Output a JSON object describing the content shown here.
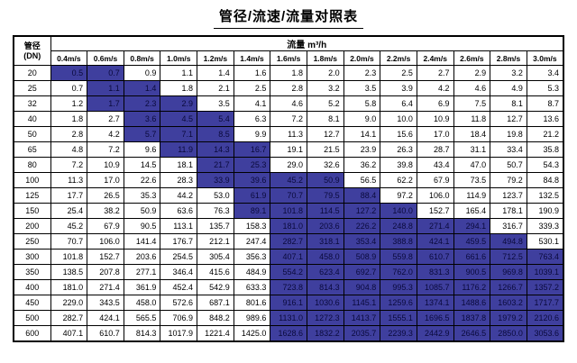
{
  "page": {
    "title": "管径/流速/流量对照表"
  },
  "colors": {
    "highlight_bg": "#3F3F9E",
    "highlight_text": "#0A0A3C",
    "border": "#000000",
    "text": "#000000",
    "background": "#FFFFFF"
  },
  "table": {
    "dn_header": "管径",
    "dn_header_sub": "(DN)",
    "flow_header": "流量 m³/h",
    "velocity_headers": [
      "0.4m/s",
      "0.6m/s",
      "0.8m/s",
      "1.0m/s",
      "1.2m/s",
      "1.4m/s",
      "1.6m/s",
      "1.8m/s",
      "2.0m/s",
      "2.2m/s",
      "2.4m/s",
      "2.6m/s",
      "2.8m/s",
      "3.0m/s"
    ],
    "rows": [
      {
        "dn": "20",
        "values": [
          "0.5",
          "0.7",
          "0.9",
          "1.1",
          "1.4",
          "1.6",
          "1.8",
          "2.0",
          "2.3",
          "2.5",
          "2.7",
          "2.9",
          "3.2",
          "3.4"
        ],
        "highlight": [
          0,
          1
        ]
      },
      {
        "dn": "25",
        "values": [
          "0.7",
          "1.1",
          "1.4",
          "1.8",
          "2.1",
          "2.5",
          "2.8",
          "3.2",
          "3.5",
          "3.9",
          "4.2",
          "4.6",
          "4.9",
          "5.3"
        ],
        "highlight": [
          1,
          2
        ]
      },
      {
        "dn": "32",
        "values": [
          "1.2",
          "1.7",
          "2.3",
          "2.9",
          "3.5",
          "4.1",
          "4.6",
          "5.2",
          "5.8",
          "6.4",
          "6.9",
          "7.5",
          "8.1",
          "8.7"
        ],
        "highlight": [
          1,
          3
        ]
      },
      {
        "dn": "40",
        "values": [
          "1.8",
          "2.7",
          "3.6",
          "4.5",
          "5.4",
          "6.3",
          "7.2",
          "8.1",
          "9.0",
          "10.0",
          "10.9",
          "11.8",
          "12.7",
          "13.6"
        ],
        "highlight": [
          2,
          4
        ]
      },
      {
        "dn": "50",
        "values": [
          "2.8",
          "4.2",
          "5.7",
          "7.1",
          "8.5",
          "9.9",
          "11.3",
          "12.7",
          "14.1",
          "15.6",
          "17.0",
          "18.4",
          "19.8",
          "21.2"
        ],
        "highlight": [
          2,
          4
        ]
      },
      {
        "dn": "65",
        "values": [
          "4.8",
          "7.2",
          "9.6",
          "11.9",
          "14.3",
          "16.7",
          "19.1",
          "21.5",
          "23.9",
          "26.3",
          "28.7",
          "31.1",
          "33.4",
          "35.8"
        ],
        "highlight": [
          3,
          5
        ]
      },
      {
        "dn": "80",
        "values": [
          "7.2",
          "10.9",
          "14.5",
          "18.1",
          "21.7",
          "25.3",
          "29.0",
          "32.6",
          "36.2",
          "39.8",
          "43.4",
          "47.0",
          "50.7",
          "54.3"
        ],
        "highlight": [
          4,
          5
        ]
      },
      {
        "dn": "100",
        "values": [
          "11.3",
          "17.0",
          "22.6",
          "28.3",
          "33.9",
          "39.6",
          "45.2",
          "50.9",
          "56.5",
          "62.2",
          "67.9",
          "73.5",
          "79.2",
          "84.8"
        ],
        "highlight": [
          4,
          7
        ]
      },
      {
        "dn": "125",
        "values": [
          "17.7",
          "26.5",
          "35.3",
          "44.2",
          "53.0",
          "61.9",
          "70.7",
          "79.5",
          "88.4",
          "97.2",
          "106.0",
          "114.9",
          "123.7",
          "132.5"
        ],
        "highlight": [
          5,
          8
        ]
      },
      {
        "dn": "150",
        "values": [
          "25.4",
          "38.2",
          "50.9",
          "63.6",
          "76.3",
          "89.1",
          "101.8",
          "114.5",
          "127.2",
          "140.0",
          "152.7",
          "165.4",
          "178.1",
          "190.9"
        ],
        "highlight": [
          5,
          9
        ]
      },
      {
        "dn": "200",
        "values": [
          "45.2",
          "67.9",
          "90.5",
          "113.1",
          "135.7",
          "158.3",
          "181.0",
          "203.6",
          "226.2",
          "248.8",
          "271.4",
          "294.1",
          "316.7",
          "339.3"
        ],
        "highlight": [
          6,
          11
        ]
      },
      {
        "dn": "250",
        "values": [
          "70.7",
          "106.0",
          "141.4",
          "176.7",
          "212.1",
          "247.4",
          "282.7",
          "318.1",
          "353.4",
          "388.8",
          "424.1",
          "459.5",
          "494.8",
          "530.1"
        ],
        "highlight": [
          6,
          12
        ]
      },
      {
        "dn": "300",
        "values": [
          "101.8",
          "152.7",
          "203.6",
          "254.5",
          "305.4",
          "356.3",
          "407.1",
          "458.0",
          "508.9",
          "559.8",
          "610.7",
          "661.6",
          "712.5",
          "763.4"
        ],
        "highlight": [
          6,
          13
        ]
      },
      {
        "dn": "350",
        "values": [
          "138.5",
          "207.8",
          "277.1",
          "346.4",
          "415.6",
          "484.9",
          "554.2",
          "623.4",
          "692.7",
          "762.0",
          "831.3",
          "900.5",
          "969.8",
          "1039.1"
        ],
        "highlight": [
          6,
          13
        ]
      },
      {
        "dn": "400",
        "values": [
          "181.0",
          "271.4",
          "361.9",
          "452.4",
          "542.9",
          "633.3",
          "723.8",
          "814.3",
          "904.8",
          "995.3",
          "1085.7",
          "1176.2",
          "1266.7",
          "1357.2"
        ],
        "highlight": [
          6,
          13
        ]
      },
      {
        "dn": "450",
        "values": [
          "229.0",
          "343.5",
          "458.0",
          "572.6",
          "687.1",
          "801.6",
          "916.1",
          "1030.6",
          "1145.1",
          "1259.6",
          "1374.1",
          "1488.6",
          "1603.2",
          "1717.7"
        ],
        "highlight": [
          6,
          13
        ]
      },
      {
        "dn": "500",
        "values": [
          "282.7",
          "424.1",
          "565.5",
          "706.9",
          "848.2",
          "989.6",
          "1131.0",
          "1272.3",
          "1413.7",
          "1555.1",
          "1696.5",
          "1837.8",
          "1979.2",
          "2120.6"
        ],
        "highlight": [
          6,
          13
        ]
      },
      {
        "dn": "600",
        "values": [
          "407.1",
          "610.7",
          "814.3",
          "1017.9",
          "1221.4",
          "1425.0",
          "1628.6",
          "1832.2",
          "2035.7",
          "2239.3",
          "2442.9",
          "2646.5",
          "2850.0",
          "3053.6"
        ],
        "highlight": [
          6,
          13
        ]
      }
    ]
  }
}
